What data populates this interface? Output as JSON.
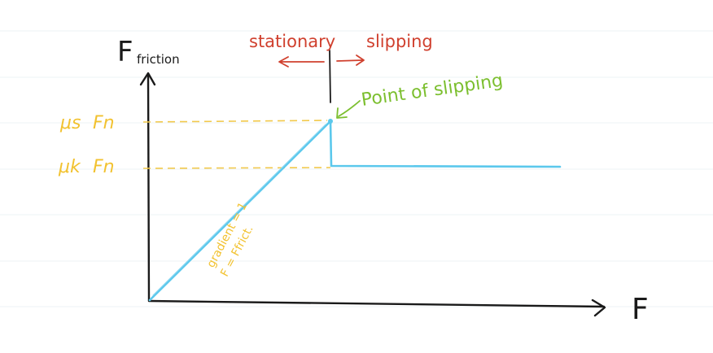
{
  "diagram": {
    "y_axis_label_main": "F",
    "y_axis_label_sub": "friction",
    "x_axis_label": "F",
    "region_left_label": "stationary",
    "region_right_label": "slipping",
    "point_label": "Point of slipping",
    "static_level_label_mu": "μs",
    "static_level_label_f": "Fn",
    "kinetic_level_label_mu": "μk",
    "kinetic_level_label_f": "Fn",
    "gradient_note_line1": "gradient = 1",
    "gradient_note_line2": "F = Ffrict.",
    "colors": {
      "axes": "#1a1a1a",
      "graph_line": "#5bc8ec",
      "guides": "#f2c94c",
      "level_labels": "#f2c230",
      "region_labels": "#d0402e",
      "point_label": "#7cbf2f",
      "grid": "#eef3f6"
    }
  }
}
